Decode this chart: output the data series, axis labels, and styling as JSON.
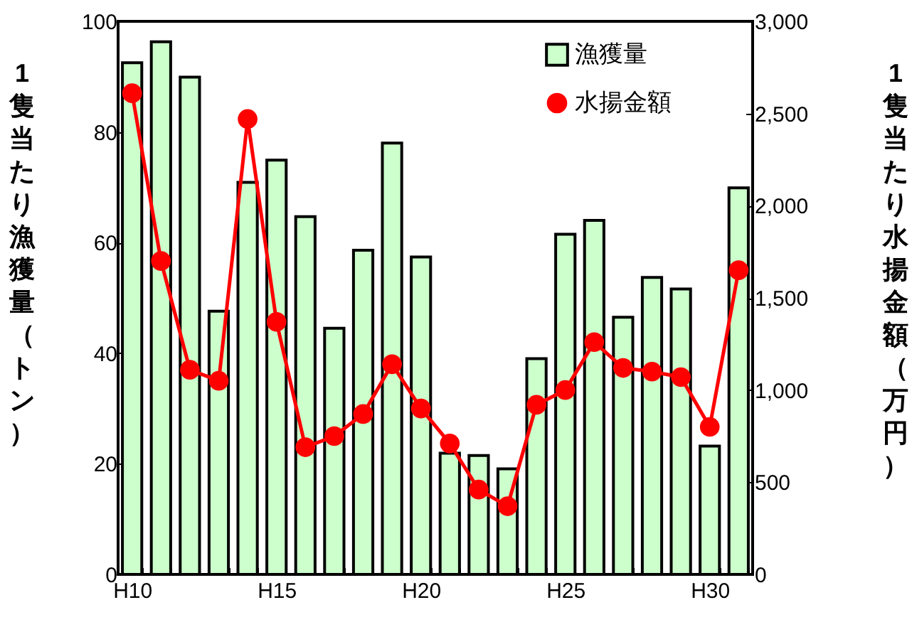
{
  "chart_data": {
    "type": "bar",
    "ylabel": "1隻当たり漁獲量（トン）",
    "y2label": "1隻当たり水揚金額（万円）",
    "categories": [
      "H10",
      null,
      null,
      null,
      null,
      "H15",
      null,
      null,
      null,
      null,
      "H20",
      null,
      null,
      null,
      null,
      "H25",
      null,
      null,
      null,
      null,
      "H30",
      null
    ],
    "series": [
      {
        "name": "漁獲量",
        "color": "#ccffcc",
        "values": [
          92.5,
          96.3,
          89.9,
          47.6,
          70.9,
          74.9,
          64.7,
          44.5,
          58.6,
          78.0,
          57.4,
          21.9,
          21.5,
          19.1,
          39.0,
          61.5,
          64.0,
          46.5,
          53.7,
          51.6,
          23.2,
          69.9
        ]
      },
      {
        "name": "水揚金額",
        "type": "line",
        "axis": "y2",
        "color": "#ff0000",
        "values": [
          2610,
          1700,
          1110,
          1050,
          2470,
          1370,
          690,
          750,
          870,
          1140,
          900,
          710,
          460,
          370,
          920,
          1000,
          1260,
          1120,
          1100,
          1070,
          800,
          1650
        ]
      }
    ],
    "ylim": [
      0,
      100
    ],
    "yticks": [
      0,
      20,
      40,
      60,
      80,
      100
    ],
    "y2lim": [
      0,
      3000
    ],
    "y2ticks": [
      {
        "value": 0,
        "label": "0"
      },
      {
        "value": 500,
        "label": "500"
      },
      {
        "value": 1000,
        "label": "1,000"
      },
      {
        "value": 1500,
        "label": "1,500"
      },
      {
        "value": 2000,
        "label": "2,000"
      },
      {
        "value": 2500,
        "label": "2,500"
      },
      {
        "value": 3000,
        "label": "3,000"
      }
    ],
    "legend": "top right",
    "marker": "circle"
  }
}
